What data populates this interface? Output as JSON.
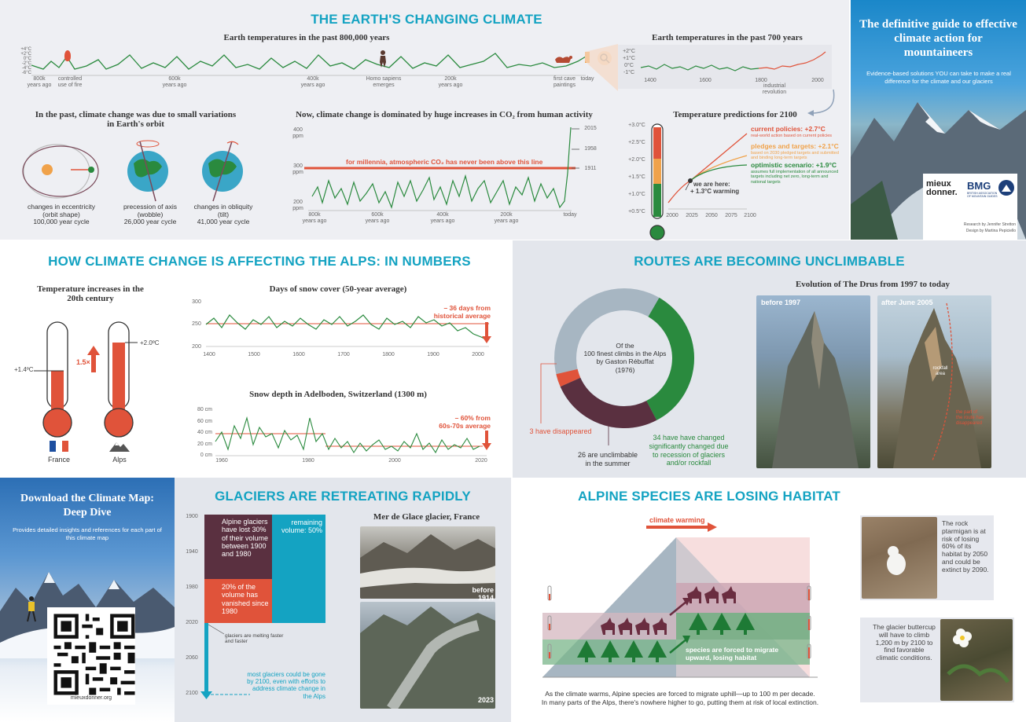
{
  "top": {
    "title": "THE EARTH'S CHANGING CLIMATE",
    "temp800k": {
      "title": "Earth temperatures in the past 800,000 years",
      "y_ticks": [
        "+4°C",
        "+2°C",
        "0°C",
        "-2°C",
        "-4°C",
        "-6°C"
      ],
      "x_labels": [
        "800k\nyears ago",
        "600k\nyears ago",
        "400k\nyears ago",
        "200k\nyears ago",
        "today"
      ],
      "annotations": [
        "controlled\nuse of fire",
        "Homo sapiens\nemerges",
        "first cave\npaintings"
      ]
    },
    "temp700": {
      "title": "Earth temperatures in the past 700 years",
      "y_ticks": [
        "+2°C",
        "+1°C",
        "0°C",
        "-1°C"
      ],
      "x_labels": [
        "1400",
        "1600",
        "1800",
        "2000"
      ],
      "annotation": "industrial revolution"
    },
    "orbit": {
      "title": "In the past, climate change was due to small variations in Earth's orbit",
      "items": [
        {
          "label": "changes in eccentricity\n(orbit shape)",
          "cycle": "100,000 year cycle"
        },
        {
          "label": "precession of axis\n(wobble)",
          "cycle": "26,000 year cycle"
        },
        {
          "label": "changes in obliquity\n(tilt)",
          "cycle": "41,000 year cycle"
        }
      ]
    },
    "co2": {
      "title": "Now, climate change is dominated by huge increases in CO₂ from human activity",
      "y_ticks": [
        "400\nppm",
        "300\nppm",
        "200\nppm"
      ],
      "x_labels": [
        "800k\nyears ago",
        "600k\nyears ago",
        "400k\nyears ago",
        "200k\nyears ago",
        "today"
      ],
      "line_note": "for millennia, atmospheric CO₂ has never been above this line",
      "years": [
        "2015",
        "1958",
        "1911"
      ]
    },
    "predict": {
      "title": "Temperature predictions for 2100",
      "y_ticks": [
        "+3.0°C",
        "+2.5°C",
        "+2.0°C",
        "+1.5°C",
        "+1.0°C",
        "+0.5°C"
      ],
      "x_labels": [
        "2000",
        "2025",
        "2050",
        "2075",
        "2100"
      ],
      "current": "current policies: +2.7°C",
      "current_sub": "real-world action based on current policies",
      "pledges": "pledges and targets: +2.1°C",
      "pledges_sub": "based on 2030 pledged targets and submitted and binding long-term targets",
      "optimistic": "optimistic scenario: +1.9°C",
      "optimistic_sub": "assumes full implementation of all announced targets including net zero, long-term and national targets",
      "here": "we are here:",
      "here_sub": "+ 1.3°C warming"
    }
  },
  "guide": {
    "title": "The definitive guide to effective climate action for mountaineers",
    "subtitle": "Evidence-based solutions YOU can take to make a real difference for the climate and our glaciers",
    "logo1": "mieux donner.",
    "logo2": "BMG",
    "logo2_sub": "BRITISH ASSOCIATION OF MOUNTAIN GUIDES",
    "credit1": "Research by Jennifer Stretton",
    "credit2": "Design by Martina Pepiciello"
  },
  "alps": {
    "title": "HOW CLIMATE CHANGE IS AFFECTING THE ALPS: IN NUMBERS",
    "thermo_title": "Temperature increases in the 20th century",
    "france_val": "+1.4ºC",
    "alps_val": "+2.0ºC",
    "ratio": "1.5×",
    "france": "France",
    "alps": "Alps",
    "snow_title": "Days of snow cover (50-year average)",
    "snow_y": [
      "300",
      "250",
      "200"
    ],
    "snow_x": [
      "1400",
      "1500",
      "1600",
      "1700",
      "1800",
      "1900",
      "2000"
    ],
    "snow_note": "– 36 days from\nhistorical average",
    "depth_title": "Snow depth in Adelboden, Switzerland (1300 m)",
    "depth_y": [
      "80 cm",
      "60 cm",
      "40 cm",
      "20 cm",
      "0 cm"
    ],
    "depth_x": [
      "1960",
      "1980",
      "2000",
      "2020"
    ],
    "depth_note": "– 60% from\n60s-70s average"
  },
  "routes": {
    "title": "ROUTES ARE BECOMING UNCLIMBABLE",
    "center": "Of the\n100 finest climbs in the Alps\nby Gaston Rébuffat\n(1976)",
    "disappeared": "3 have disappeared",
    "unclimbable": "26 are unclimbable\nin the summer",
    "changed": "34 have have changed\nsignificantly changed due\nto recession of glaciers\nand/or rockfall",
    "drus_title": "Evolution of The Drus from 1997 to today",
    "before": "before 1997",
    "after": "after June 2005",
    "rockfall": "rockfall\narea",
    "part": "the part of\nthe route has\ndisappeared"
  },
  "download": {
    "title": "Download the Climate Map: Deep Dive",
    "sub": "Provides detailed insights and references for each part of this climate map",
    "url": "mieuxdonner.org"
  },
  "glaciers": {
    "title": "GLACIERS ARE RETREATING RAPIDLY",
    "years": [
      "1900",
      "1940",
      "1980",
      "2020",
      "2060",
      "2100"
    ],
    "lost": "Alpine glaciers have lost 30% of their volume between 1900 and 1980",
    "vanished": "20% of the volume has vanished since 1980",
    "remaining": "remaining volume: 50%",
    "melting": "glaciers are melting faster and faster",
    "gone": "most glaciers could be gone by 2100, even with efforts to address climate change in the Alps",
    "mer_title": "Mer de Glace glacier, France",
    "before1914": "before 1914",
    "y2023": "2023"
  },
  "species": {
    "title": "ALPINE SPECIES ARE LOSING HABITAT",
    "warming": "climate warming",
    "forced": "species are forced to migrate upward, losing habitat",
    "caption1": "As the climate warms, Alpine species are forced to migrate uphill—up to 100 m per decade.",
    "caption2": "In many parts of the Alps, there's nowhere higher to go, putting them at risk of local extinction.",
    "ptarmigan": "The rock ptarmigan is at risk of losing 60% of its habitat by 2050 and could be extinct by 2090.",
    "buttercup": "The glacier buttercup will have to climb 1,200 m by 2100 to find favorable climatic conditions."
  },
  "colors": {
    "accent": "#14a3c2",
    "red": "#e0533a",
    "green": "#2a8a3e",
    "orange": "#f0a24a",
    "plum": "#5a3040"
  },
  "chart_data": [
    {
      "type": "line",
      "title": "Earth temperatures in the past 800,000 years",
      "x": [
        -800000,
        -600000,
        -400000,
        -200000,
        0
      ],
      "ylim": [
        -6,
        4
      ]
    },
    {
      "type": "line",
      "title": "Earth temperatures in the past 700 years",
      "x": [
        1400,
        1600,
        1800,
        2000
      ],
      "ylim": [
        -1,
        2
      ]
    },
    {
      "type": "line",
      "title": "Now, climate change is dominated by huge increases in CO₂ from human activity",
      "ylim": [
        200,
        400
      ]
    },
    {
      "type": "line",
      "title": "Days of snow cover (50-year average)",
      "ylim": [
        200,
        300
      ]
    },
    {
      "type": "line",
      "title": "Snow depth in Adelboden, Switzerland (1300 m)",
      "ylim": [
        0,
        80
      ]
    },
    {
      "type": "pie",
      "categories": [
        "changed",
        "unclimbable",
        "disappeared",
        "other"
      ],
      "values": [
        34,
        26,
        3,
        37
      ]
    }
  ]
}
